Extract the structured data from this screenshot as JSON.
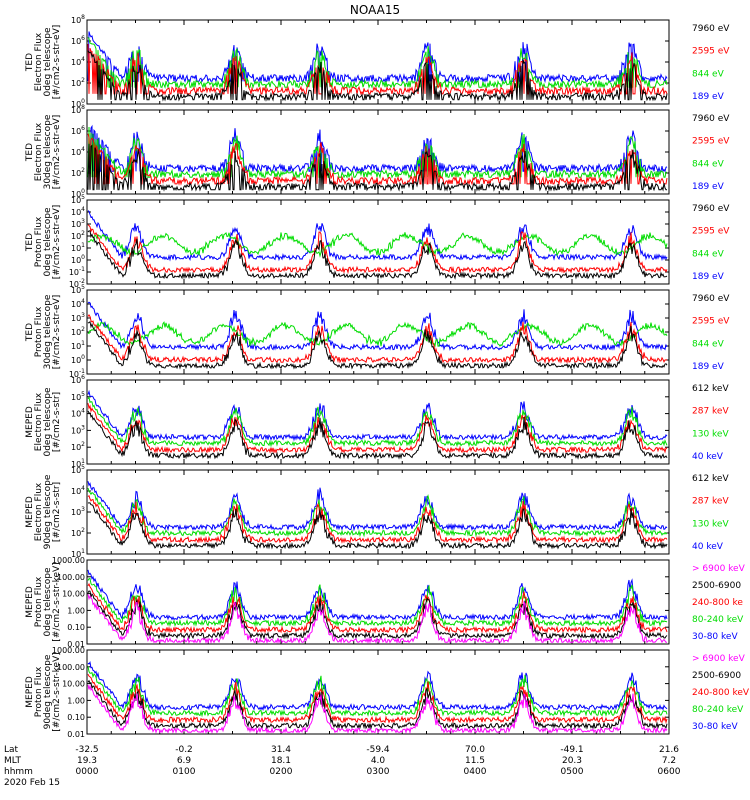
{
  "title": "NOAA15",
  "colors": {
    "black": "#000000",
    "red": "#ff0000",
    "green": "#00dd00",
    "blue": "#0000ff",
    "magenta": "#ff00ff"
  },
  "footer": {
    "row_labels": [
      "Lat",
      "MLT",
      "hhmm",
      "2020 Feb 15"
    ],
    "lat": [
      "-32.5",
      "-0.2",
      "31.4",
      "-59.4",
      "70.0",
      "-49.1",
      "21.6"
    ],
    "mlt": [
      "19.3",
      "6.9",
      "18.1",
      "4.0",
      "11.5",
      "20.3",
      "7.2"
    ],
    "hhmm": [
      "0000",
      "0100",
      "0200",
      "0300",
      "0400",
      "0500",
      "0600"
    ]
  },
  "chart_data": [
    {
      "type": "line",
      "ylabel": [
        "TED",
        "Electron Flux",
        "0deg telescope",
        "[#/cm2-s-str-eV]"
      ],
      "scale": "log",
      "ylim_exp": [
        0,
        8
      ],
      "ticks": [
        "10^0",
        "10^2",
        "10^4",
        "10^6",
        "10^8"
      ],
      "x": [
        "0000",
        "0100",
        "0200",
        "0300",
        "0400",
        "0500",
        "0600"
      ],
      "series": [
        {
          "name": "7960 eV",
          "color": "black"
        },
        {
          "name": "2595 eV",
          "color": "red"
        },
        {
          "name": "844 eV",
          "color": "green"
        },
        {
          "name": "189 eV",
          "color": "blue"
        }
      ]
    },
    {
      "type": "line",
      "ylabel": [
        "TED",
        "Electron Flux",
        "30deg telescope",
        "[#/cm2-s-str-eV]"
      ],
      "scale": "log",
      "ylim_exp": [
        0,
        8
      ],
      "ticks": [
        "10^0",
        "10^2",
        "10^4",
        "10^6",
        "10^8"
      ],
      "series": [
        {
          "name": "7960 eV",
          "color": "black"
        },
        {
          "name": "2595 eV",
          "color": "red"
        },
        {
          "name": "844 eV",
          "color": "green"
        },
        {
          "name": "189 eV",
          "color": "blue"
        }
      ]
    },
    {
      "type": "line",
      "ylabel": [
        "TED",
        "Proton Flux",
        "0deg telescope",
        "[#/cm2-s-str-eV]"
      ],
      "scale": "log",
      "ylim_exp": [
        -2,
        5
      ],
      "ticks": [
        "10^-2",
        "10^-1",
        "10^0",
        "10^1",
        "10^2",
        "10^3",
        "10^4",
        "10^5"
      ],
      "series": [
        {
          "name": "7960 eV",
          "color": "black"
        },
        {
          "name": "2595 eV",
          "color": "red"
        },
        {
          "name": "844 eV",
          "color": "green"
        },
        {
          "name": "189 eV",
          "color": "blue"
        }
      ]
    },
    {
      "type": "line",
      "ylabel": [
        "TED",
        "Proton Flux",
        "30deg telescope",
        "[#/cm2-s-str-eV]"
      ],
      "scale": "log",
      "ylim_exp": [
        -1,
        5
      ],
      "ticks": [
        "10^-1",
        "10^0",
        "10^1",
        "10^2",
        "10^3",
        "10^4",
        "10^5"
      ],
      "series": [
        {
          "name": "7960 eV",
          "color": "black"
        },
        {
          "name": "2595 eV",
          "color": "red"
        },
        {
          "name": "844 eV",
          "color": "green"
        },
        {
          "name": "189 eV",
          "color": "blue"
        }
      ]
    },
    {
      "type": "line",
      "ylabel": [
        "MEPED",
        "Electron Flux",
        "0deg telescope",
        "[#/cm2-s-str]"
      ],
      "scale": "log",
      "ylim_exp": [
        1,
        6
      ],
      "ticks": [
        "10^1",
        "10^2",
        "10^3",
        "10^4",
        "10^5",
        "10^6"
      ],
      "series": [
        {
          "name": "612 keV",
          "color": "black"
        },
        {
          "name": "287 keV",
          "color": "red"
        },
        {
          "name": "130 keV",
          "color": "green"
        },
        {
          "name": "40 keV",
          "color": "blue"
        }
      ]
    },
    {
      "type": "line",
      "ylabel": [
        "MEPED",
        "Electron Flux",
        "90deg telescope",
        "[#/cm2-s-str]"
      ],
      "scale": "log",
      "ylim_exp": [
        1,
        5
      ],
      "ticks": [
        "10^1",
        "10^2",
        "10^3",
        "10^4",
        "10^5"
      ],
      "series": [
        {
          "name": "612 keV",
          "color": "black"
        },
        {
          "name": "287 keV",
          "color": "red"
        },
        {
          "name": "130 keV",
          "color": "green"
        },
        {
          "name": "40 keV",
          "color": "blue"
        }
      ]
    },
    {
      "type": "line",
      "ylabel": [
        "MEPED",
        "Proton Flux",
        "0deg telescope",
        "[#/cm2-s-str-keV]"
      ],
      "scale": "log",
      "ylim_exp": [
        -2,
        3
      ],
      "ticks": [
        "0.01",
        "0.10",
        "1.00",
        "10.00",
        "100.00",
        "1000.00"
      ],
      "series": [
        {
          "name": "> 6900 keV",
          "color": "magenta"
        },
        {
          "name": "2500-6900",
          "color": "black"
        },
        {
          "name": "240-800 ke",
          "color": "red"
        },
        {
          "name": "80-240 keV",
          "color": "green"
        },
        {
          "name": "30-80 keV",
          "color": "blue"
        }
      ]
    },
    {
      "type": "line",
      "ylabel": [
        "MEPED",
        "Proton Flux",
        "90deg telescope",
        "[#/cm2-s-str-keV]"
      ],
      "scale": "log",
      "ylim_exp": [
        -2,
        3
      ],
      "ticks": [
        "0.01",
        "0.10",
        "1.00",
        "10.00",
        "100.00",
        "1000.00"
      ],
      "series": [
        {
          "name": "> 6900 keV",
          "color": "magenta"
        },
        {
          "name": "2500-6900",
          "color": "black"
        },
        {
          "name": "240-800 keV",
          "color": "red"
        },
        {
          "name": "80-240 keV",
          "color": "green"
        },
        {
          "name": "30-80 keV",
          "color": "blue"
        }
      ]
    }
  ]
}
